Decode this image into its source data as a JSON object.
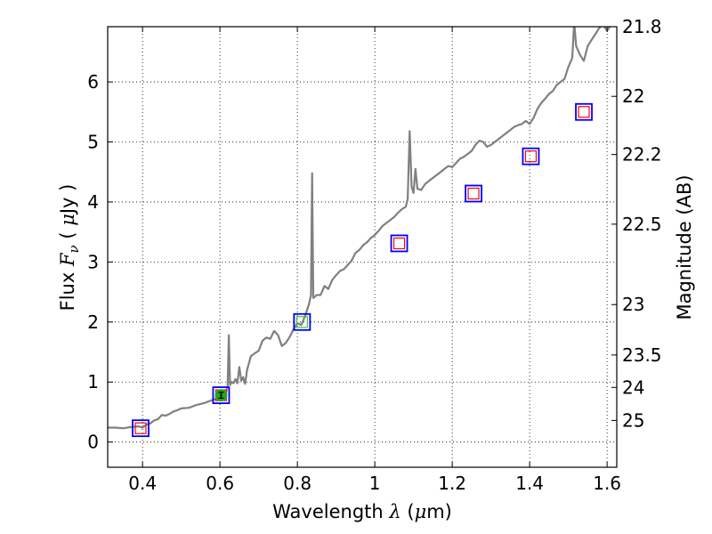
{
  "chart_data": {
    "type": "line",
    "xlabel_parts": [
      "Wavelength  ",
      "λ",
      " (",
      "μ",
      "m)"
    ],
    "ylabel_parts": [
      "Flux  ",
      "F",
      "ν",
      "  ( ",
      "μ",
      "Jy )"
    ],
    "y2label": "Magnitude (AB)",
    "xlim": [
      0.31,
      1.625
    ],
    "ylim": [
      -0.42,
      6.92
    ],
    "x_ticks": [
      0.4,
      0.6,
      0.8,
      1.0,
      1.2,
      1.4,
      1.6
    ],
    "x_tick_labels": [
      "0.4",
      "0.6",
      "0.8",
      "1",
      "1.2",
      "1.4",
      "1.6"
    ],
    "y_ticks": [
      0,
      1,
      2,
      3,
      4,
      5,
      6
    ],
    "y_tick_labels": [
      "0",
      "1",
      "2",
      "3",
      "4",
      "5",
      "6"
    ],
    "mag_ticks": [
      {
        "label": "21.8",
        "flux": 6.93
      },
      {
        "label": "22",
        "flux": 5.76
      },
      {
        "label": "22.2",
        "flux": 4.79
      },
      {
        "label": "22.5",
        "flux": 3.63
      },
      {
        "label": "23",
        "flux": 2.29
      },
      {
        "label": "23.5",
        "flux": 1.45
      },
      {
        "label": "24",
        "flux": 0.91
      },
      {
        "label": "25",
        "flux": 0.36
      }
    ],
    "grid": true,
    "series": [
      {
        "color": "#808080",
        "points": [
          [
            0.31,
            0.24
          ],
          [
            0.33,
            0.24
          ],
          [
            0.35,
            0.23
          ],
          [
            0.37,
            0.25
          ],
          [
            0.39,
            0.26
          ],
          [
            0.4,
            0.24
          ],
          [
            0.41,
            0.29
          ],
          [
            0.42,
            0.31
          ],
          [
            0.43,
            0.36
          ],
          [
            0.44,
            0.38
          ],
          [
            0.45,
            0.45
          ],
          [
            0.46,
            0.44
          ],
          [
            0.47,
            0.47
          ],
          [
            0.48,
            0.51
          ],
          [
            0.49,
            0.53
          ],
          [
            0.5,
            0.56
          ],
          [
            0.52,
            0.57
          ],
          [
            0.54,
            0.62
          ],
          [
            0.56,
            0.65
          ],
          [
            0.58,
            0.7
          ],
          [
            0.59,
            0.72
          ],
          [
            0.6,
            0.75
          ],
          [
            0.61,
            0.79
          ],
          [
            0.615,
            0.8
          ],
          [
            0.62,
            0.95
          ],
          [
            0.623,
            1.78
          ],
          [
            0.626,
            0.95
          ],
          [
            0.63,
            1.0
          ],
          [
            0.635,
            0.98
          ],
          [
            0.64,
            1.05
          ],
          [
            0.645,
            0.98
          ],
          [
            0.65,
            1.25
          ],
          [
            0.655,
            1.02
          ],
          [
            0.66,
            1.08
          ],
          [
            0.665,
            0.97
          ],
          [
            0.67,
            1.2
          ],
          [
            0.68,
            1.43
          ],
          [
            0.69,
            1.48
          ],
          [
            0.7,
            1.52
          ],
          [
            0.71,
            1.69
          ],
          [
            0.72,
            1.74
          ],
          [
            0.73,
            1.72
          ],
          [
            0.74,
            1.85
          ],
          [
            0.75,
            1.78
          ],
          [
            0.76,
            1.6
          ],
          [
            0.77,
            1.65
          ],
          [
            0.78,
            1.75
          ],
          [
            0.79,
            1.88
          ],
          [
            0.8,
            1.98
          ],
          [
            0.81,
            1.95
          ],
          [
            0.82,
            2.1
          ],
          [
            0.83,
            2.3
          ],
          [
            0.835,
            2.45
          ],
          [
            0.838,
            4.48
          ],
          [
            0.841,
            2.4
          ],
          [
            0.85,
            2.45
          ],
          [
            0.86,
            2.45
          ],
          [
            0.87,
            2.6
          ],
          [
            0.88,
            2.55
          ],
          [
            0.89,
            2.7
          ],
          [
            0.9,
            2.78
          ],
          [
            0.91,
            2.85
          ],
          [
            0.92,
            2.88
          ],
          [
            0.93,
            2.95
          ],
          [
            0.94,
            3.02
          ],
          [
            0.95,
            3.15
          ],
          [
            0.96,
            3.2
          ],
          [
            0.97,
            3.28
          ],
          [
            0.98,
            3.33
          ],
          [
            0.99,
            3.4
          ],
          [
            1.0,
            3.45
          ],
          [
            1.01,
            3.52
          ],
          [
            1.02,
            3.6
          ],
          [
            1.03,
            3.65
          ],
          [
            1.04,
            3.7
          ],
          [
            1.05,
            3.75
          ],
          [
            1.06,
            3.82
          ],
          [
            1.07,
            3.88
          ],
          [
            1.08,
            3.92
          ],
          [
            1.085,
            4.05
          ],
          [
            1.09,
            5.18
          ],
          [
            1.095,
            4.25
          ],
          [
            1.1,
            4.15
          ],
          [
            1.105,
            4.55
          ],
          [
            1.11,
            4.22
          ],
          [
            1.12,
            4.2
          ],
          [
            1.13,
            4.3
          ],
          [
            1.14,
            4.35
          ],
          [
            1.15,
            4.4
          ],
          [
            1.16,
            4.45
          ],
          [
            1.17,
            4.5
          ],
          [
            1.18,
            4.55
          ],
          [
            1.19,
            4.6
          ],
          [
            1.2,
            4.58
          ],
          [
            1.21,
            4.65
          ],
          [
            1.22,
            4.72
          ],
          [
            1.23,
            4.75
          ],
          [
            1.24,
            4.8
          ],
          [
            1.25,
            4.85
          ],
          [
            1.26,
            4.95
          ],
          [
            1.27,
            5.02
          ],
          [
            1.28,
            5.0
          ],
          [
            1.29,
            4.92
          ],
          [
            1.3,
            4.95
          ],
          [
            1.31,
            5.0
          ],
          [
            1.32,
            5.05
          ],
          [
            1.33,
            5.1
          ],
          [
            1.34,
            5.15
          ],
          [
            1.35,
            5.2
          ],
          [
            1.36,
            5.25
          ],
          [
            1.37,
            5.28
          ],
          [
            1.38,
            5.3
          ],
          [
            1.39,
            5.35
          ],
          [
            1.4,
            5.3
          ],
          [
            1.41,
            5.4
          ],
          [
            1.42,
            5.55
          ],
          [
            1.43,
            5.65
          ],
          [
            1.44,
            5.72
          ],
          [
            1.45,
            5.8
          ],
          [
            1.46,
            5.85
          ],
          [
            1.47,
            5.95
          ],
          [
            1.48,
            6.0
          ],
          [
            1.49,
            6.05
          ],
          [
            1.5,
            6.25
          ],
          [
            1.51,
            6.4
          ],
          [
            1.515,
            7.0
          ],
          [
            1.52,
            6.6
          ],
          [
            1.53,
            6.45
          ],
          [
            1.54,
            6.35
          ],
          [
            1.55,
            6.6
          ],
          [
            1.56,
            6.7
          ],
          [
            1.57,
            6.8
          ],
          [
            1.58,
            6.9
          ],
          [
            1.59,
            6.95
          ],
          [
            1.6,
            6.85
          ],
          [
            1.61,
            6.95
          ],
          [
            1.62,
            7.0
          ]
        ]
      }
    ],
    "photometry": [
      {
        "x": 0.395,
        "y": 0.23
      },
      {
        "x": 0.603,
        "y": 0.78
      },
      {
        "x": 0.812,
        "y": 2.0
      },
      {
        "x": 1.063,
        "y": 3.31
      },
      {
        "x": 1.255,
        "y": 4.14
      },
      {
        "x": 1.403,
        "y": 4.76
      },
      {
        "x": 1.54,
        "y": 5.5
      }
    ],
    "detection": {
      "x": 0.603,
      "y": 0.78,
      "yerr": 0.05,
      "color": "#1fa81f"
    },
    "colors": {
      "box_outer": "#0000ff",
      "box_inner": "#ff0000",
      "box_inner_green": "#33cc33",
      "grid": "#000000"
    }
  }
}
